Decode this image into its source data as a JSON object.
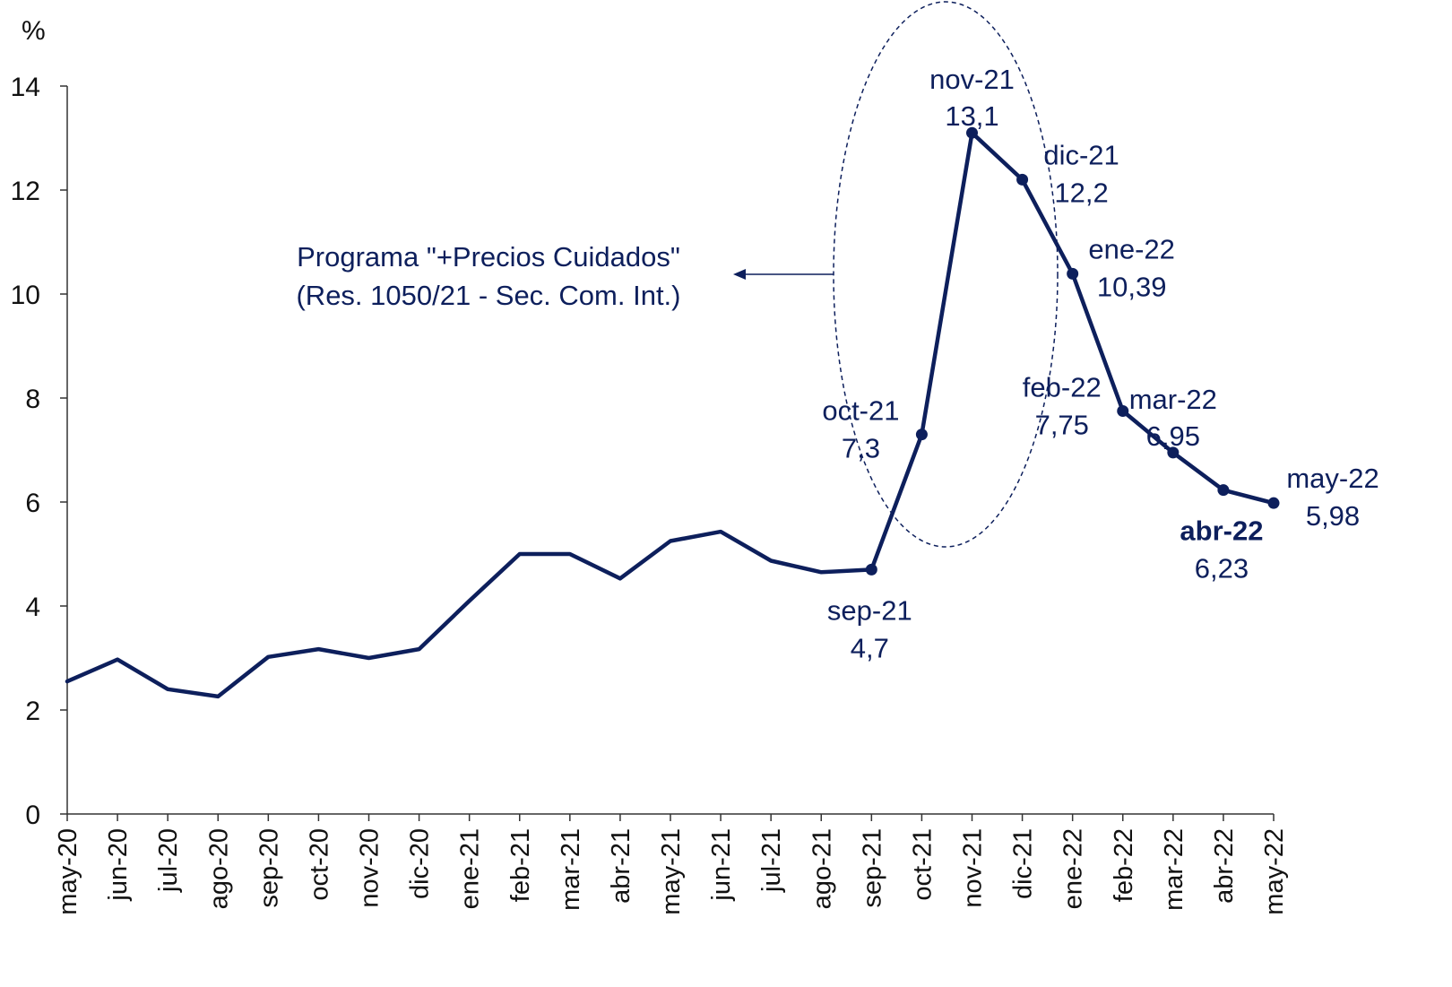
{
  "chart_data": {
    "type": "line",
    "title": "",
    "xlabel": "",
    "ylabel": "%",
    "ylim": [
      0,
      14
    ],
    "yticks": [
      0,
      2,
      4,
      6,
      8,
      10,
      12,
      14
    ],
    "grid": false,
    "color": "#0d1f5c",
    "categories": [
      "may-20",
      "jun-20",
      "jul-20",
      "ago-20",
      "sep-20",
      "oct-20",
      "nov-20",
      "dic-20",
      "ene-21",
      "feb-21",
      "mar-21",
      "abr-21",
      "may-21",
      "jun-21",
      "jul-21",
      "ago-21",
      "sep-21",
      "oct-21",
      "nov-21",
      "dic-21",
      "ene-22",
      "feb-22",
      "mar-22",
      "abr-22",
      "may-22"
    ],
    "values": [
      2.55,
      2.97,
      2.4,
      2.26,
      3.02,
      3.17,
      3.0,
      3.17,
      4.1,
      5.0,
      5.0,
      4.53,
      5.25,
      5.43,
      4.87,
      4.65,
      4.7,
      7.3,
      13.1,
      12.2,
      10.39,
      7.75,
      6.95,
      6.23,
      5.98
    ],
    "markers_from_index": 16,
    "data_labels": [
      {
        "index": 16,
        "month": "sep-21",
        "value": "4,7",
        "position": "below",
        "bold": false
      },
      {
        "index": 17,
        "month": "oct-21",
        "value": "7,3",
        "position": "left",
        "bold": false
      },
      {
        "index": 18,
        "month": "nov-21",
        "value": "13,1",
        "position": "above",
        "bold": false
      },
      {
        "index": 19,
        "month": "dic-21",
        "value": "12,2",
        "position": "right",
        "bold": false
      },
      {
        "index": 20,
        "month": "ene-22",
        "value": "10,39",
        "position": "right",
        "bold": false
      },
      {
        "index": 21,
        "month": "feb-22",
        "value": "7,75",
        "position": "left",
        "bold": false
      },
      {
        "index": 22,
        "month": "mar-22",
        "value": "6,95",
        "position": "above",
        "bold": false
      },
      {
        "index": 23,
        "month": "abr-22",
        "value": "6,23",
        "position": "below",
        "bold": true
      },
      {
        "index": 24,
        "month": "may-22",
        "value": "5,98",
        "position": "right",
        "bold": false
      }
    ],
    "annotation": {
      "line1": "Programa \"+Precios Cuidados\"",
      "line2": "(Res. 1050/21 - Sec. Com. Int.)"
    }
  }
}
